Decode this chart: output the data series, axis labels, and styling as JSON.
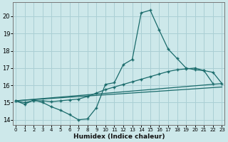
{
  "xlabel": "Humidex (Indice chaleur)",
  "bg_color": "#cde8ea",
  "grid_color": "#aacfd4",
  "line_color": "#1a6b6b",
  "xlim": [
    -0.3,
    23.3
  ],
  "ylim": [
    13.7,
    20.8
  ],
  "xticks": [
    0,
    1,
    2,
    3,
    4,
    5,
    6,
    7,
    8,
    9,
    10,
    11,
    12,
    13,
    14,
    15,
    16,
    17,
    18,
    19,
    20,
    21,
    22,
    23
  ],
  "yticks": [
    14,
    15,
    16,
    17,
    18,
    19,
    20
  ],
  "curve1_x": [
    0,
    1,
    2,
    3,
    4,
    5,
    6,
    7,
    8,
    9,
    10,
    11,
    12,
    13,
    14,
    15,
    16,
    17,
    18,
    19,
    20,
    21,
    22
  ],
  "curve1_y": [
    15.1,
    14.9,
    15.15,
    15.0,
    14.75,
    14.55,
    14.3,
    14.0,
    14.05,
    14.7,
    16.05,
    16.15,
    17.2,
    17.5,
    20.2,
    20.35,
    19.2,
    18.1,
    17.55,
    17.0,
    16.9,
    16.85,
    16.1
  ],
  "curve2_x": [
    0,
    1,
    2,
    3,
    4,
    5,
    6,
    7,
    8,
    9,
    10,
    11,
    12,
    13,
    14,
    15,
    16,
    17,
    18,
    19,
    20,
    21,
    22,
    23
  ],
  "curve2_y": [
    15.1,
    15.0,
    15.1,
    15.1,
    15.05,
    15.1,
    15.15,
    15.2,
    15.35,
    15.55,
    15.75,
    15.9,
    16.05,
    16.2,
    16.35,
    16.5,
    16.65,
    16.8,
    16.9,
    16.95,
    17.0,
    16.85,
    16.75,
    16.1
  ],
  "curve3_x": [
    0,
    23
  ],
  "curve3_y": [
    15.1,
    16.1
  ],
  "curve4_x": [
    0,
    23
  ],
  "curve4_y": [
    15.1,
    15.9
  ]
}
